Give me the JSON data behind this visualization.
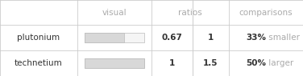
{
  "rows": [
    {
      "name": "plutonium",
      "visual_ratio": 0.67,
      "ratio1": "0.67",
      "ratio2": "1",
      "pct": "33%",
      "comparison": "smaller"
    },
    {
      "name": "technetium",
      "visual_ratio": 1.0,
      "ratio1": "1",
      "ratio2": "1.5",
      "pct": "50%",
      "comparison": "larger"
    }
  ],
  "bg_color": "#ffffff",
  "header_text_color": "#aaaaaa",
  "row_text_color": "#333333",
  "pct_color": "#333333",
  "comparison_color": "#aaaaaa",
  "box_fill_color": "#d8d8d8",
  "box_empty_color": "#f5f5f5",
  "box_edge_color": "#bbbbbb",
  "grid_color": "#cccccc",
  "font_size": 7.5,
  "col_bounds": [
    0.0,
    0.255,
    0.5,
    0.635,
    0.755,
    1.0
  ],
  "row_bounds": [
    1.0,
    0.67,
    0.335,
    0.0
  ]
}
